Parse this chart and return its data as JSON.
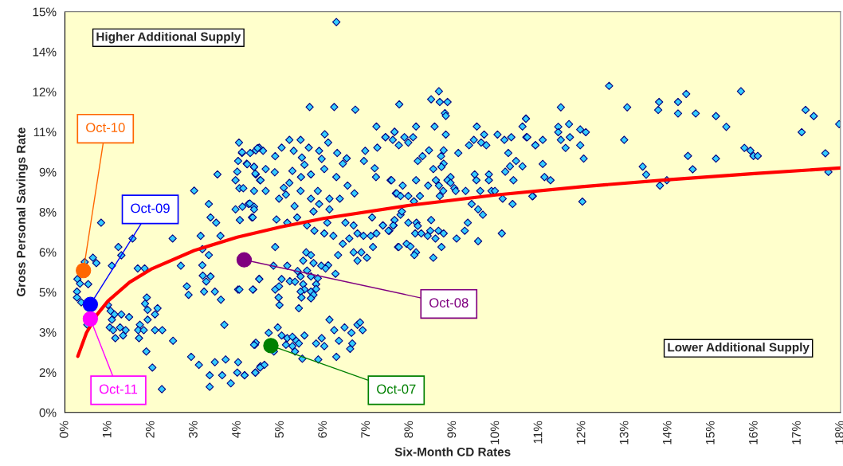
{
  "chart_data": {
    "type": "scatter",
    "xlabel": "Six-Month CD Rates",
    "ylabel": "Gross Personal Savings Rate",
    "xlim": [
      0,
      18
    ],
    "ylim": [
      0,
      15
    ],
    "xticks": [
      {
        "value": 0,
        "label": "0%"
      },
      {
        "value": 1,
        "label": "1%"
      },
      {
        "value": 2,
        "label": "2%"
      },
      {
        "value": 3,
        "label": "3%"
      },
      {
        "value": 4,
        "label": "4%"
      },
      {
        "value": 5,
        "label": "5%"
      },
      {
        "value": 6,
        "label": "6%"
      },
      {
        "value": 7,
        "label": "7%"
      },
      {
        "value": 8,
        "label": "8%"
      },
      {
        "value": 9,
        "label": "9%"
      },
      {
        "value": 10,
        "label": "10%"
      },
      {
        "value": 11,
        "label": "11%"
      },
      {
        "value": 12,
        "label": "12%"
      },
      {
        "value": 13,
        "label": "13%"
      },
      {
        "value": 14,
        "label": "14%"
      },
      {
        "value": 15,
        "label": "15%"
      },
      {
        "value": 16,
        "label": "16%"
      },
      {
        "value": 17,
        "label": "17%"
      },
      {
        "value": 18,
        "label": "18%"
      }
    ],
    "yticks": [
      {
        "value": 0,
        "label": "0%"
      },
      {
        "value": 1.5,
        "label": "2%"
      },
      {
        "value": 3,
        "label": "3%"
      },
      {
        "value": 4.5,
        "label": "5%"
      },
      {
        "value": 6,
        "label": "6%"
      },
      {
        "value": 7.5,
        "label": "8%"
      },
      {
        "value": 9,
        "label": "9%"
      },
      {
        "value": 10.5,
        "label": "11%"
      },
      {
        "value": 12,
        "label": "12%"
      },
      {
        "value": 13.5,
        "label": "14%"
      },
      {
        "value": 15,
        "label": "15%"
      }
    ],
    "grid": false,
    "series": [
      {
        "type": "scatter",
        "marker": "diamond",
        "color": "#33ccff",
        "x": [
          4.04,
          4.11,
          4.3,
          4.43,
          4.51,
          4.02,
          4.22,
          4.39,
          4.0,
          3.54,
          4.43,
          4.53,
          3.96,
          4.05,
          3.0,
          3.34,
          3.96,
          4.26,
          4.39,
          4.34,
          4.06,
          3.38,
          3.51,
          0.84,
          1.57,
          2.5,
          3.15,
          3.61,
          1.24,
          1.31,
          0.65,
          0.73,
          1.09,
          1.69,
          1.85,
          2.69,
          3.19,
          3.34,
          3.19,
          3.2,
          3.38,
          3.28,
          2.83,
          2.87,
          3.23,
          3.48,
          3.62,
          4.02,
          4.37,
          4.51,
          0.46,
          0.29,
          0.35,
          0.28,
          0.28,
          0.54,
          0.38,
          0.52,
          1.0,
          1.06,
          1.15,
          1.31,
          1.49,
          1.09,
          1.04,
          1.12,
          1.28,
          1.41,
          1.35,
          1.17,
          1.9,
          1.86,
          1.92,
          2.15,
          2.09,
          1.92,
          1.74,
          1.7,
          1.83,
          2.09,
          2.26,
          1.72,
          2.51,
          1.89,
          2.03,
          2.25,
          3.7,
          2.93,
          3.11,
          3.48,
          3.73,
          3.36,
          3.36,
          3.65,
          4.02,
          4.0,
          4.17,
          4.42,
          4.54,
          3.85,
          4.41,
          4.43,
          5.68,
          6.25,
          6.74,
          7.23,
          6.03,
          7.65,
          7.44,
          6.11,
          5.47,
          5.21,
          5.03,
          5.66,
          5.9,
          4.11,
          4.47,
          4.6,
          4.88,
          5.31,
          5.5,
          5.96,
          6.32,
          6.54,
          6.97,
          7.25,
          6.94,
          6.45,
          4.23,
          4.39,
          4.66,
          5.28,
          5.56,
          6.02,
          4.87,
          7.19,
          4.42,
          5.48,
          5.71,
          6.3,
          7.22,
          7.56,
          5.21,
          4.54,
          6.56,
          4.66,
          5.08,
          5.47,
          5.87,
          4.14,
          4.39,
          5.13,
          4.97,
          5.71,
          6.14,
          6.38,
          6.72,
          7.68,
          4.29,
          5.9,
          6.14,
          4.12,
          4.39,
          5.33,
          5.77,
          4.36,
          5.39,
          4.91,
          5.16,
          5.62,
          6.09,
          6.51,
          6.7,
          7.13,
          7.38,
          7.63,
          5.79,
          6.02,
          6.23,
          6.79,
          6.93,
          7.1,
          7.23,
          7.53,
          6.6,
          6.45,
          4.88,
          7.15,
          7.73,
          6.7,
          6.88,
          6.34,
          7.01,
          6.79,
          5.6,
          5.71,
          5.53,
          5.77,
          5.95,
          6.11,
          6.05,
          6.28,
          4.84,
          5.16,
          5.4,
          5.62,
          5.71,
          5.87,
          5.03,
          5.22,
          5.34,
          5.47,
          5.53,
          4.51,
          5.83,
          4.88,
          4.97,
          5.56,
          5.71,
          5.83,
          5.47,
          4.36,
          4.05,
          5.77,
          5.71,
          4.96,
          4.98,
          5.49,
          5.43,
          6.14,
          6.25,
          6.49,
          6.79,
          6.85,
          6.91,
          6.65,
          5.96,
          6.36,
          6.67,
          4.94,
          4.73,
          5.03,
          5.16,
          5.28,
          5.37,
          5.56,
          5.83,
          4.39,
          6.02,
          5.28,
          5.13,
          5.43,
          4.85,
          5.34,
          6.62,
          6.3,
          5.51,
          5.88,
          4.63,
          4.53,
          4.42,
          4.17,
          8.68,
          8.5,
          8.7,
          8.88,
          7.76,
          8.82,
          8.84,
          8.15,
          8.58,
          7.65,
          7.44,
          7.61,
          7.88,
          8.08,
          7.75,
          7.97,
          8.84,
          9.56,
          9.73,
          9.38,
          9.49,
          9.66,
          9.78,
          10.04,
          10.2,
          10.36,
          10.62,
          10.7,
          10.71,
          10.92,
          8.45,
          8.3,
          8.79,
          8.73,
          9.13,
          10.29,
          8.19,
          8.79,
          10.47,
          10.33,
          10.62,
          8.55,
          8.74,
          10.22,
          9.51,
          9.84,
          8.95,
          7.58,
          8.15,
          8.61,
          8.88,
          9.55,
          9.84,
          10.41,
          8.95,
          7.84,
          8.43,
          8.68,
          9.04,
          9.07,
          8.78,
          9.3,
          9.64,
          9.9,
          9.98,
          10.86,
          7.7,
          7.79,
          7.97,
          8.24,
          8.7,
          10.16,
          8.1,
          9.44,
          10.39,
          9.59,
          9.7,
          7.79,
          7.82,
          7.65,
          7.38,
          7.51,
          7.62,
          7.97,
          8.16,
          8.19,
          8.5,
          9.35,
          9.28,
          8.13,
          8.27,
          8.48,
          8.67,
          8.79,
          8.42,
          8.6,
          9.09,
          10.14,
          9.59,
          7.93,
          8.02,
          7.75,
          8.74,
          8.15,
          8.11,
          8.55,
          12.63,
          11.51,
          13.05,
          13.79,
          13.77,
          14.23,
          14.42,
          14.23,
          14.64,
          15.11,
          15.69,
          15.35,
          17.19,
          17.38,
          17.97,
          17.1,
          10.7,
          10.73,
          10.92,
          11.09,
          11.45,
          11.45,
          11.7,
          11.51,
          11.72,
          11.62,
          11.96,
          12.09,
          11.96,
          12.04,
          11.09,
          11.13,
          11.27,
          10.85,
          12.01,
          12.98,
          13.41,
          13.49,
          13.81,
          13.97,
          14.46,
          14.57,
          15.11,
          15.77,
          15.91,
          15.98,
          16.08,
          17.65,
          17.72,
          6.3
        ],
        "values": [
          10.1,
          9.71,
          9.71,
          9.81,
          9.91,
          9.41,
          9.31,
          9.19,
          9.01,
          8.91,
          8.91,
          8.69,
          8.69,
          8.39,
          8.3,
          7.8,
          7.6,
          7.8,
          7.7,
          7.3,
          7.2,
          7.3,
          7.1,
          7.1,
          6.51,
          6.51,
          6.61,
          6.61,
          6.19,
          5.88,
          5.79,
          5.59,
          5.49,
          5.39,
          5.39,
          5.49,
          5.51,
          5.89,
          6.11,
          5.12,
          5.09,
          4.9,
          4.72,
          4.4,
          4.52,
          4.52,
          4.22,
          4.6,
          4.6,
          5.0,
          5.63,
          4.99,
          4.82,
          4.52,
          4.3,
          4.8,
          4.12,
          3.28,
          4.02,
          3.8,
          3.67,
          3.67,
          3.57,
          3.47,
          3.18,
          3.08,
          3.18,
          3.08,
          2.88,
          2.78,
          4.3,
          4.07,
          3.84,
          3.9,
          3.67,
          3.47,
          3.28,
          3.08,
          3.08,
          3.08,
          3.08,
          2.78,
          2.68,
          2.28,
          1.68,
          0.87,
          3.28,
          2.08,
          1.78,
          1.88,
          1.98,
          1.39,
          0.96,
          1.39,
          1.88,
          1.49,
          1.39,
          1.49,
          1.73,
          1.09,
          2.53,
          2.61,
          11.43,
          11.43,
          11.33,
          10.7,
          10.41,
          10.5,
          10.3,
          10.1,
          10.2,
          10.2,
          9.91,
          9.91,
          9.79,
          9.74,
          9.89,
          9.79,
          9.59,
          9.79,
          9.54,
          9.49,
          9.71,
          9.51,
          9.79,
          9.91,
          9.41,
          9.31,
          9.29,
          9.19,
          9.11,
          9.04,
          9.27,
          9.11,
          8.99,
          9.14,
          8.94,
          8.81,
          8.91,
          8.81,
          8.81,
          8.69,
          8.59,
          8.69,
          8.49,
          8.29,
          8.41,
          8.29,
          8.29,
          8.39,
          8.29,
          8.15,
          8.0,
          8.0,
          8.0,
          8.0,
          8.2,
          8.2,
          7.82,
          7.8,
          7.6,
          7.7,
          7.6,
          7.72,
          7.52,
          7.3,
          7.3,
          7.22,
          7.1,
          7.0,
          7.1,
          7.1,
          7.0,
          7.3,
          7.0,
          7.0,
          6.8,
          6.7,
          6.61,
          6.7,
          6.61,
          6.61,
          6.7,
          6.8,
          6.51,
          6.31,
          6.19,
          6.19,
          6.19,
          5.99,
          5.99,
          5.89,
          5.79,
          5.68,
          5.99,
          5.89,
          5.68,
          5.59,
          5.49,
          5.51,
          5.39,
          5.19,
          5.49,
          5.49,
          5.29,
          5.31,
          5.09,
          5.02,
          4.99,
          4.91,
          4.89,
          5.09,
          4.8,
          4.99,
          4.8,
          4.6,
          4.72,
          4.6,
          4.52,
          4.62,
          4.52,
          4.6,
          4.6,
          4.4,
          4.27,
          4.3,
          4.02,
          4.3,
          3.9,
          3.47,
          3.08,
          3.18,
          3.28,
          3.37,
          3.08,
          2.98,
          2.78,
          2.68,
          2.58,
          3.18,
          2.98,
          2.88,
          2.78,
          2.83,
          2.68,
          2.88,
          2.58,
          2.53,
          2.48,
          2.48,
          2.53,
          2.58,
          2.28,
          2.28,
          2.38,
          2.08,
          2.01,
          1.98,
          1.78,
          1.68,
          1.49,
          1.39,
          12.02,
          11.72,
          11.62,
          11.62,
          11.53,
          11.2,
          11.1,
          10.7,
          10.7,
          10.5,
          10.3,
          10.2,
          10.3,
          10.3,
          10.0,
          10.1,
          10.4,
          10.7,
          10.4,
          10.0,
          10.2,
          10.1,
          10.0,
          10.4,
          10.2,
          10.3,
          10.7,
          11.0,
          10.3,
          10.0,
          9.81,
          9.59,
          9.81,
          9.59,
          9.71,
          9.71,
          9.41,
          9.31,
          9.41,
          9.21,
          9.21,
          9.11,
          9.19,
          9.01,
          8.91,
          8.91,
          8.81,
          8.69,
          8.69,
          8.69,
          8.69,
          8.69,
          8.69,
          8.69,
          8.59,
          8.49,
          8.49,
          8.49,
          8.39,
          8.29,
          8.29,
          8.29,
          8.29,
          8.29,
          8.29,
          8.1,
          8.2,
          8.1,
          8.1,
          8.1,
          8.1,
          8.0,
          7.9,
          7.8,
          7.8,
          7.6,
          7.4,
          7.4,
          7.52,
          7.2,
          7.0,
          6.8,
          7.0,
          7.1,
          7.1,
          6.98,
          7.2,
          7.1,
          6.8,
          6.7,
          6.7,
          6.8,
          6.8,
          6.7,
          6.61,
          6.51,
          6.51,
          6.7,
          6.41,
          6.31,
          6.21,
          6.19,
          6.19,
          5.99,
          5.89,
          5.79,
          12.22,
          11.42,
          11.42,
          11.62,
          11.32,
          11.62,
          11.92,
          11.19,
          11.19,
          11.09,
          12.02,
          10.69,
          11.32,
          11.09,
          10.79,
          10.49,
          10.99,
          10.3,
          10.0,
          10.2,
          10.69,
          10.49,
          10.79,
          10.2,
          10.3,
          9.9,
          10.59,
          10.49,
          10.0,
          9.5,
          9.3,
          8.81,
          8.69,
          8.09,
          7.89,
          10.2,
          9.2,
          8.9,
          8.49,
          8.69,
          9.6,
          9.1,
          9.5,
          9.9,
          9.8,
          9.6,
          9.6,
          9.7,
          9.0,
          14.61
        ]
      },
      {
        "type": "line",
        "marker": "none",
        "line_style": "solid",
        "color": "#ff0000",
        "x": [
          0.3,
          0.5,
          0.75,
          1,
          1.5,
          2,
          3,
          4,
          5,
          6,
          8,
          10,
          12,
          14,
          16,
          18
        ],
        "values": [
          2.1,
          2.98,
          3.67,
          4.17,
          4.87,
          5.36,
          6.06,
          6.56,
          6.94,
          7.26,
          7.75,
          8.14,
          8.45,
          8.71,
          8.94,
          9.15
        ]
      },
      {
        "type": "scatter",
        "marker": "circle",
        "color": "#ff6600",
        "x": [
          0.43
        ],
        "values": [
          5.31
        ]
      },
      {
        "type": "scatter",
        "marker": "circle",
        "color": "#0000ff",
        "x": [
          0.59
        ],
        "values": [
          4.04
        ]
      },
      {
        "type": "scatter",
        "marker": "circle",
        "color": "#ff00ff",
        "x": [
          0.59
        ],
        "values": [
          3.5
        ]
      },
      {
        "type": "scatter",
        "marker": "circle",
        "color": "#800080",
        "x": [
          4.16
        ],
        "values": [
          5.71
        ]
      },
      {
        "type": "scatter",
        "marker": "circle",
        "color": "#008000",
        "x": [
          4.78
        ],
        "values": [
          2.5
        ]
      }
    ],
    "annotations": [
      {
        "text": "Oct-10",
        "x": 0.43,
        "y": 5.31
      },
      {
        "text": "Oct-09",
        "x": 0.59,
        "y": 4.04
      },
      {
        "text": "Oct-11",
        "x": 0.59,
        "y": 3.5
      },
      {
        "text": "Oct-08",
        "x": 4.16,
        "y": 5.71
      },
      {
        "text": "Oct-07",
        "x": 4.78,
        "y": 2.5
      },
      "Higher Additional Supply",
      "Lower Additional Supply"
    ]
  }
}
